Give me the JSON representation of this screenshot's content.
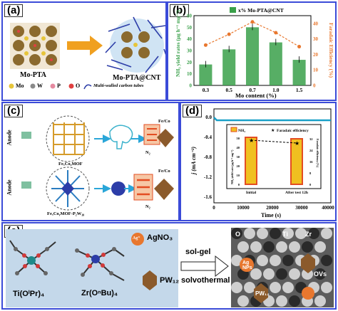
{
  "panel_a": {
    "tag": "(a)",
    "left_label": "Mo-PTA",
    "right_label": "Mo-PTA@CNT",
    "legend": [
      {
        "name": "Mo",
        "color": "#e6c53a"
      },
      {
        "name": "W",
        "color": "#8a8a8a"
      },
      {
        "name": "P",
        "color": "#e58aa0"
      },
      {
        "name": "O",
        "color": "#e04040"
      }
    ],
    "legend_cnt": "Multi-walled carbon tubes"
  },
  "panel_b": {
    "tag": "(b)",
    "legend_label": "x% Mo-PTA@CNT",
    "ylabel_left": "NH₃ yield rates (μg h⁻¹ mg⁻¹)",
    "ylabel_right": "Faradaic Efficiency (%)",
    "xlabel": "Mo content (%)"
  },
  "chart_data": {
    "type": "bar",
    "categories": [
      "0.3",
      "0.5",
      "0.7",
      "1.0",
      "1.5"
    ],
    "series": [
      {
        "name": "x% Mo-PTA@CNT",
        "values": [
          18,
          31,
          50,
          37,
          22
        ]
      }
    ],
    "fe_values": [
      26,
      33,
      41,
      34,
      25
    ],
    "ylim": [
      0,
      60
    ],
    "yticks": [
      0,
      10,
      20,
      30,
      40,
      50,
      60
    ],
    "y2lim": [
      0,
      45
    ],
    "y2ticks": [
      0,
      10,
      20,
      30,
      40
    ],
    "bar_color": "#3aa04a",
    "line_color": "#e8772e"
  },
  "panel_c": {
    "tag": "(c)",
    "anode1": "Anode",
    "anode2": "Anode",
    "mof1": "FeₓCoᵧMOF",
    "mof2": "FeₓCoᵧMOF-P₂W₁₈",
    "feco1": "Fe/Co",
    "feco2": "Fe/Co",
    "n2_1": "N₂",
    "n2_2": "N₂"
  },
  "panel_d": {
    "tag": "(d)",
    "ylabel": "j (mA cm⁻²)",
    "xlabel": "Time (s)",
    "yticks": [
      "0.0",
      "-0.4",
      "-0.8",
      "-1.2",
      "-1.6"
    ],
    "xticks": [
      "0",
      "10000",
      "20000",
      "30000",
      "40000"
    ],
    "inset_legend_nh3": "NH₃",
    "inset_legend_fe": "Faradaic efficiency",
    "inset_xticks": [
      "Initial",
      "After test 12h"
    ],
    "inset_ylabel": "NH₃ yield rate (μg h⁻¹ mg⁻¹)",
    "inset_y2label": "Faradaic efficiency (%)",
    "inset_yticks": [
      "0",
      "10",
      "20",
      "30",
      "40",
      "50"
    ],
    "inset_y2ticks": [
      "0",
      "8",
      "16",
      "24",
      "32"
    ]
  },
  "panel_e": {
    "tag": "(e)",
    "ti_label": "Ti(OⁱPr)₄",
    "zr_label": "Zr(OⁿBu)₄",
    "ag_ion": "Ag⁺",
    "agno3": "AgNO₃",
    "pw12": "PW₁₂",
    "arrow_top": "sol-gel",
    "arrow_bottom": "solvothermal",
    "right_o": "O",
    "right_ti": "Ti",
    "right_zr": "Zr",
    "right_agnps": "Ag\nNPs",
    "right_ovs": "OVs",
    "right_pw12": "PW₁₂"
  }
}
